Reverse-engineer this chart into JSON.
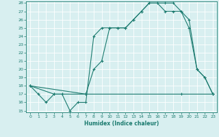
{
  "xlabel": "Humidex (Indice chaleur)",
  "line1_x": [
    0,
    1,
    2,
    3,
    4,
    5,
    6,
    7,
    8,
    9,
    10,
    11,
    12,
    13,
    14,
    15,
    16,
    17,
    18,
    19,
    20,
    21,
    22,
    23
  ],
  "line1_y": [
    18,
    17,
    16,
    17,
    17,
    15,
    16,
    16,
    24,
    25,
    25,
    25,
    25,
    26,
    27,
    28,
    28,
    28,
    28,
    27,
    26,
    20,
    19,
    17
  ],
  "line2_x": [
    0,
    3,
    4,
    7,
    8,
    9,
    10,
    11,
    12,
    13,
    14,
    15,
    16,
    17,
    18,
    19,
    20,
    21,
    22,
    23
  ],
  "line2_y": [
    18,
    17,
    17,
    17,
    20,
    21,
    25,
    25,
    25,
    26,
    27,
    28,
    28,
    27,
    27,
    27,
    25,
    20,
    19,
    17
  ],
  "line3_x": [
    0,
    7,
    19,
    23
  ],
  "line3_y": [
    18,
    17,
    17,
    17
  ],
  "color": "#1a7a6e",
  "bg_color": "#d8eff0",
  "grid_color": "#ffffff",
  "ylim": [
    15,
    28
  ],
  "xlim": [
    0,
    23
  ],
  "yticks": [
    15,
    16,
    17,
    18,
    19,
    20,
    21,
    22,
    23,
    24,
    25,
    26,
    27,
    28
  ],
  "xticks": [
    0,
    1,
    2,
    3,
    4,
    5,
    6,
    7,
    8,
    9,
    10,
    11,
    12,
    13,
    14,
    15,
    16,
    17,
    18,
    19,
    20,
    21,
    22,
    23
  ],
  "marker": "+"
}
